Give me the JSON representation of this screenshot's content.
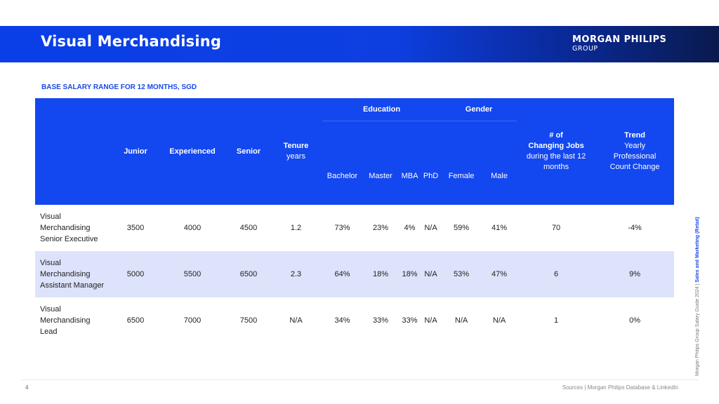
{
  "header": {
    "title": "Visual Merchandising",
    "logo_main": "MORGAN PHILIPS",
    "logo_sub": "GROUP"
  },
  "subtitle": "BASE SALARY RANGE FOR 12 MONTHS, SGD",
  "table": {
    "headers": {
      "junior": "Junior",
      "experienced": "Experienced",
      "senior": "Senior",
      "tenure_title": "Tenure",
      "tenure_sub": "years",
      "education": "Education",
      "gender": "Gender",
      "edu_cols": [
        "Bachelor",
        "Master",
        "MBA",
        "PhD"
      ],
      "gender_cols": [
        "Female",
        "Male"
      ],
      "jobs_title_1": "# of",
      "jobs_title_2": "Changing Jobs",
      "jobs_sub_1": "during the last 12",
      "jobs_sub_2": "months",
      "trend_title": "Trend",
      "trend_sub_1": "Yearly",
      "trend_sub_2": "Professional",
      "trend_sub_3": "Count Change"
    },
    "rows": [
      {
        "label": [
          "Visual",
          "Merchandising",
          "Senior Executive"
        ],
        "junior": "3500",
        "experienced": "4000",
        "senior": "4500",
        "tenure": "1.2",
        "bachelor": "73%",
        "master": "23%",
        "mba": "4%",
        "phd": "N/A",
        "female": "59%",
        "male": "41%",
        "jobs": "70",
        "trend": "-4%"
      },
      {
        "label": [
          "Visual",
          "Merchandising",
          "Assistant Manager"
        ],
        "junior": "5000",
        "experienced": "5500",
        "senior": "6500",
        "tenure": "2.3",
        "bachelor": "64%",
        "master": "18%",
        "mba": "18%",
        "phd": "N/A",
        "female": "53%",
        "male": "47%",
        "jobs": "6",
        "trend": "9%"
      },
      {
        "label": [
          "Visual",
          "Merchandising",
          "Lead"
        ],
        "junior": "6500",
        "experienced": "7000",
        "senior": "7500",
        "tenure": "N/A",
        "bachelor": "34%",
        "master": "33%",
        "mba": "33%",
        "phd": "N/A",
        "female": "N/A",
        "male": "N/A",
        "jobs": "1",
        "trend": "0%"
      }
    ]
  },
  "side_text": {
    "prefix": "Morgan Philips Group Salary Guide 2024 |",
    "highlight": "Sales and Marketing (Retail)"
  },
  "footer": {
    "page_number": "4",
    "sources": "Sources | Morgan Philips Database & LinkedIn"
  },
  "colors": {
    "brand_blue": "#1347f0",
    "row_highlight": "#dde3fb"
  }
}
